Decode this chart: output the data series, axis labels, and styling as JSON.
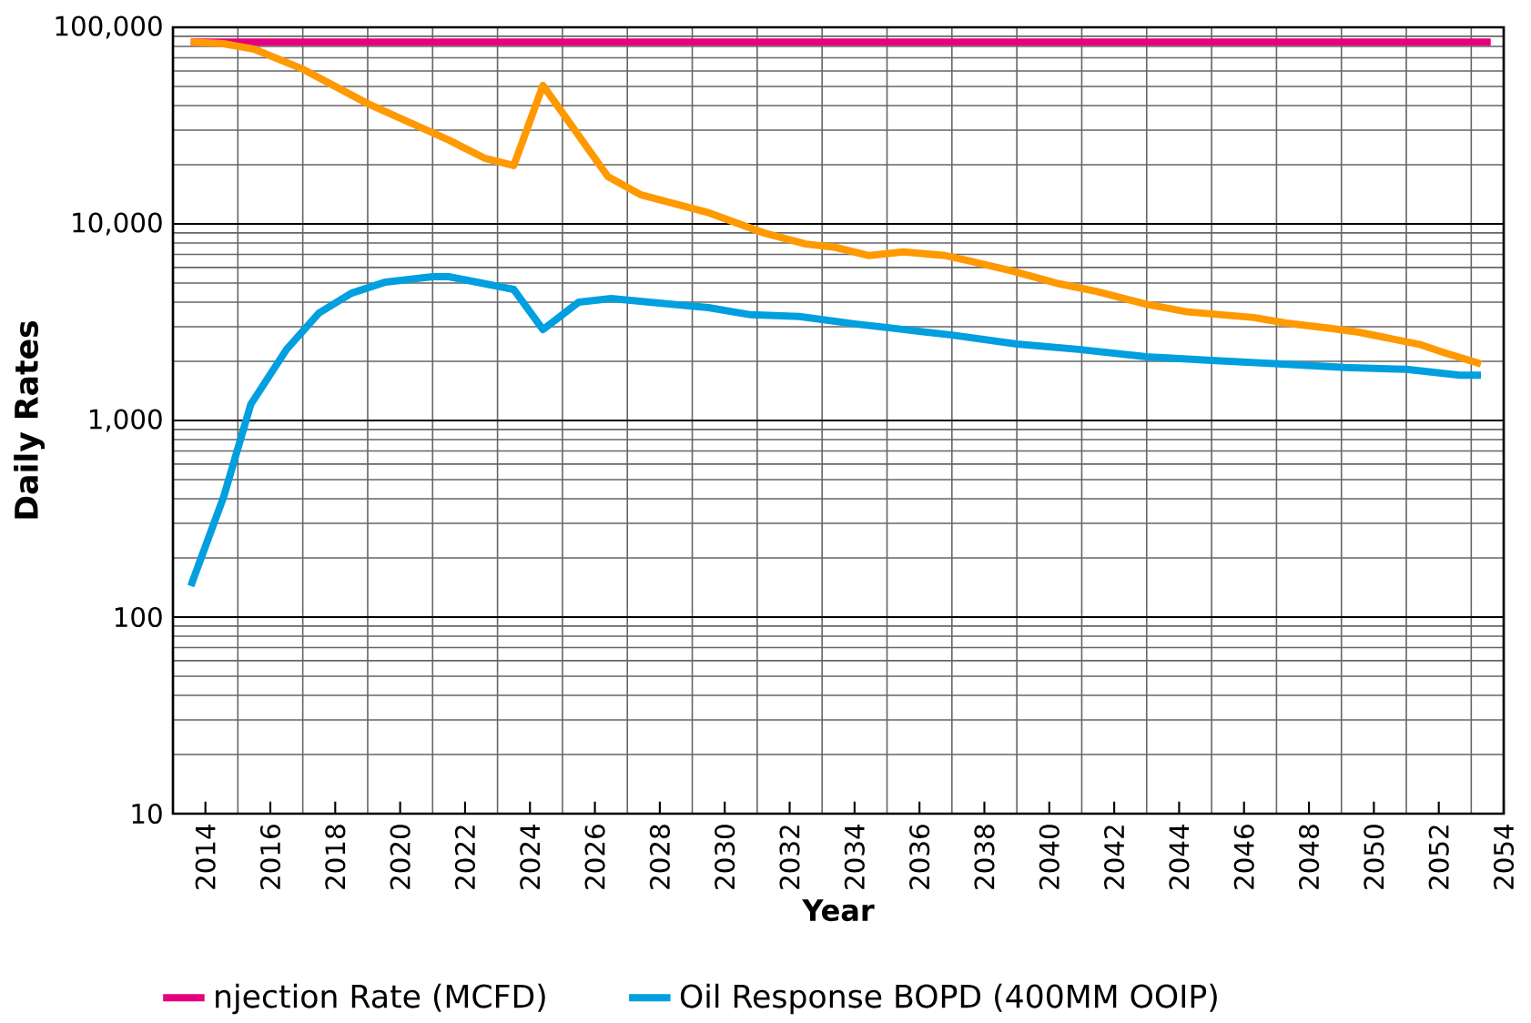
{
  "chart_data": {
    "type": "line",
    "xlabel": "Year",
    "ylabel": "Daily Rates",
    "log": "y",
    "grid": true,
    "legend": "bottom",
    "marker": "none",
    "line_style": "solid",
    "xlim": [
      2013,
      2054
    ],
    "xticks": [
      2014,
      2016,
      2018,
      2020,
      2022,
      2024,
      2026,
      2028,
      2030,
      2032,
      2034,
      2036,
      2038,
      2040,
      2042,
      2044,
      2046,
      2048,
      2050,
      2052,
      2054
    ],
    "ylim": [
      10,
      100000
    ],
    "yticks": [
      10,
      100,
      {
        "value": 1000,
        "label": "1,000"
      },
      {
        "value": 10000,
        "label": "10,000"
      },
      {
        "value": 100000,
        "label": "100,000"
      }
    ],
    "series": [
      {
        "name": "njection Rate (MCFD)",
        "color": "#e6007e",
        "x": [
          2013.55,
          2053.6
        ],
        "values": [
          84000,
          84000
        ]
      },
      {
        "color": "#ff9900",
        "x": [
          2013.55,
          2014.56,
          2015.5,
          2017.0,
          2019.0,
          2021.5,
          2022.6,
          2023.5,
          2024.4,
          2026.4,
          2027.4,
          2029.5,
          2031.2,
          2032.5,
          2033.4,
          2034.45,
          2035.5,
          2036.8,
          2037.5,
          2038.9,
          2040.3,
          2041.45,
          2043.0,
          2044.25,
          2046.3,
          2047.3,
          2048.6,
          2049.5,
          2051.4,
          2052.1,
          2053.3
        ],
        "values": [
          84000,
          82500,
          77400,
          61300,
          40900,
          26700,
          21600,
          19800,
          50600,
          17400,
          14100,
          11400,
          9000,
          7900,
          7600,
          6900,
          7200,
          6900,
          6500,
          5740,
          4960,
          4540,
          3900,
          3570,
          3340,
          3130,
          2950,
          2820,
          2440,
          2230,
          1940
        ]
      },
      {
        "name": "Oil Response BOPD (400MM OOIP)",
        "color": "#009fdf",
        "x": [
          2013.55,
          2014.56,
          2015.4,
          2016.5,
          2017.5,
          2018.5,
          2019.55,
          2021.0,
          2021.5,
          2023.5,
          2024.4,
          2025.5,
          2026.5,
          2029.5,
          2030.8,
          2032.3,
          2034.0,
          2035.0,
          2037.0,
          2039.0,
          2040.9,
          2043.0,
          2045.0,
          2047.05,
          2049.1,
          2051.0,
          2052.65,
          2053.3
        ],
        "values": [
          144,
          408,
          1210,
          2300,
          3520,
          4440,
          5060,
          5390,
          5390,
          4640,
          2900,
          4000,
          4170,
          3750,
          3450,
          3380,
          3100,
          2970,
          2720,
          2450,
          2300,
          2110,
          2020,
          1940,
          1860,
          1820,
          1700,
          1700
        ]
      }
    ]
  }
}
